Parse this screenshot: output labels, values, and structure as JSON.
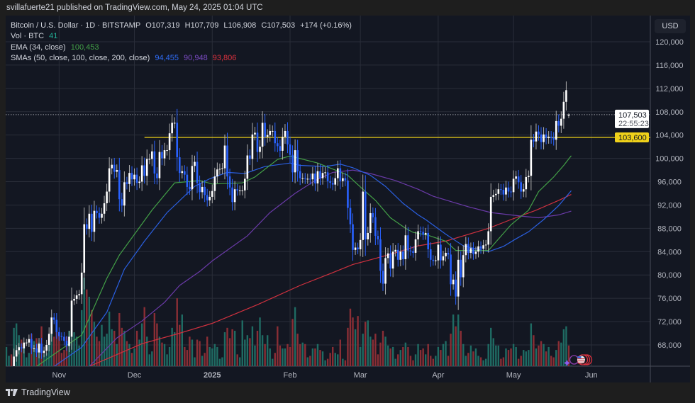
{
  "header": {
    "published": "svillafuerte21 published on TradingView.com, May 24, 2025 01:04 UTC"
  },
  "legend": {
    "symbol": "Bitcoin / U.S. Dollar · 1D · BITSTAMP",
    "open": "O107,319",
    "high": "H107,709",
    "low": "L106,908",
    "close": "C107,503",
    "change": "+174 (+0.16%)",
    "vol_label": "Vol · BTC",
    "vol_value": "41",
    "ema_label": "EMA (34, close)",
    "ema_value": "100,453",
    "sma_label": "SMAs (50, close, 100, close, 200, close)",
    "sma50_value": "94,455",
    "sma100_value": "90,948",
    "sma200_value": "93,806"
  },
  "currency": "USD",
  "footer": {
    "brand": "TradingView"
  },
  "colors": {
    "up": "#ffffff",
    "down": "#2962ff",
    "vol_up": "#1f6b63",
    "vol_down": "#8a2e35",
    "ema": "#43a047",
    "sma50": "#2a5fe0",
    "sma100": "#6a3aa8",
    "sma200": "#d0313f",
    "level": "#f0d11a",
    "background": "#131722",
    "grid": "#2a2e39"
  },
  "chart_data": {
    "type": "candlestick",
    "first_date": "2024-10-11",
    "y_ticks": [
      "120,000",
      "116,000",
      "112,000",
      "108,000",
      "104,000",
      "100,000",
      "96,000",
      "92,000",
      "88,000",
      "84,000",
      "80,000",
      "76,000",
      "72,000",
      "68,000"
    ],
    "ylim": [
      64300,
      124000
    ],
    "x_ticks": [
      {
        "label": "Nov",
        "date": "2024-11-01",
        "bold": false
      },
      {
        "label": "Dec",
        "date": "2024-12-01",
        "bold": false
      },
      {
        "label": "2025",
        "date": "2025-01-01",
        "bold": true
      },
      {
        "label": "Feb",
        "date": "2025-02-01",
        "bold": false
      },
      {
        "label": "Mar",
        "date": "2025-03-01",
        "bold": false
      },
      {
        "label": "Apr",
        "date": "2025-04-01",
        "bold": false
      },
      {
        "label": "May",
        "date": "2025-05-01",
        "bold": false
      },
      {
        "label": "Jun",
        "date": "2025-06-01",
        "bold": false
      }
    ],
    "closes": [
      62500,
      63200,
      62900,
      66000,
      67100,
      67600,
      67400,
      68400,
      68400,
      69000,
      67400,
      67400,
      66700,
      68200,
      66600,
      67000,
      68000,
      69900,
      72700,
      72300,
      70200,
      69500,
      69400,
      68700,
      67800,
      69400,
      75600,
      75900,
      76500,
      76700,
      80400,
      88700,
      87900,
      90500,
      87400,
      91000,
      90600,
      89800,
      90500,
      92300,
      94300,
      98300,
      98900,
      97700,
      98000,
      93000,
      91900,
      95900,
      95600,
      97500,
      96400,
      97200,
      95800,
      96000,
      98800,
      97000,
      99900,
      99900,
      101200,
      97400,
      96600,
      101100,
      100000,
      101400,
      101400,
      104300,
      106100,
      106100,
      100200,
      97500,
      97800,
      97200,
      95100,
      94700,
      98700,
      99400,
      95800,
      94200,
      95100,
      93700,
      92800,
      93400,
      94400,
      96900,
      98100,
      98200,
      98300,
      102200,
      96900,
      95000,
      92500,
      94700,
      94500,
      94500,
      94500,
      96500,
      100500,
      99900,
      104100,
      104400,
      101100,
      102000,
      106100,
      103700,
      104000,
      104700,
      104700,
      102600,
      102100,
      101300,
      103700,
      104700,
      102400,
      100600,
      97600,
      101400,
      97800,
      96600,
      96600,
      96500,
      96500,
      96400,
      97400,
      95700,
      97800,
      96600,
      97500,
      97600,
      96100,
      95800,
      95500,
      96600,
      98300,
      96100,
      96600,
      96200,
      91500,
      88700,
      84300,
      84700,
      84400,
      86000,
      94300,
      86100,
      87200,
      90600,
      89900,
      86700,
      86100,
      80700,
      78500,
      82900,
      83700,
      81100,
      84000,
      84300,
      82600,
      84000,
      82700,
      86800,
      84200,
      84100,
      83800,
      86100,
      87500,
      87400,
      86900,
      87200,
      84400,
      82600,
      82400,
      82500,
      85200,
      82500,
      83200,
      83800,
      83500,
      78400,
      79200,
      76300,
      82600,
      79600,
      83400,
      85300,
      83800,
      84600,
      83600,
      84000,
      84900,
      84500,
      85100,
      85200,
      87500,
      93400,
      93700,
      93900,
      94700,
      94600,
      93800,
      95000,
      94300,
      94200,
      96500,
      96900,
      95900,
      94300,
      94700,
      96800,
      97000,
      103200,
      102900,
      104600,
      104100,
      102800,
      104100,
      103500,
      103700,
      103500,
      103200,
      106400,
      105600,
      106800,
      109700,
      111700,
      107319
    ],
    "last_candle": {
      "open": 107319,
      "high": 107709,
      "low": 106908,
      "close": 107503
    },
    "volumes": [
      1300,
      700,
      800,
      2600,
      2900,
      2100,
      1800,
      1400,
      600,
      900,
      2200,
      1700,
      1900,
      1600,
      2700,
      800,
      900,
      1800,
      3300,
      2000,
      2500,
      2300,
      900,
      1100,
      2000,
      2400,
      4200,
      2300,
      2000,
      1400,
      3800,
      6000,
      5200,
      4700,
      3800,
      3000,
      2000,
      1700,
      2800,
      2000,
      2200,
      3700,
      2500,
      2400,
      1500,
      3600,
      2600,
      2400,
      1700,
      1500,
      900,
      1200,
      2400,
      1800,
      2900,
      4000,
      2000,
      800,
      1000,
      3600,
      2900,
      2000,
      1600,
      1500,
      800,
      1300,
      2600,
      2300,
      4600,
      2800,
      3500,
      1300,
      1100,
      2000,
      1800,
      600,
      1800,
      1700,
      700,
      900,
      2000,
      1300,
      1200,
      1500,
      1300,
      500,
      600,
      2300,
      2600,
      1900,
      2500,
      2400,
      800,
      600,
      3100,
      1800,
      2100,
      1900,
      2700,
      1400,
      2400,
      3300,
      2100,
      1500,
      2100,
      1200,
      500,
      900,
      2700,
      1400,
      1200,
      1200,
      1500,
      1300,
      3200,
      4000,
      2200,
      1500,
      1600,
      1500,
      600,
      700,
      1200,
      1200,
      1500,
      1100,
      1000,
      400,
      500,
      900,
      1300,
      900,
      800,
      1800,
      500,
      400,
      2600,
      3900,
      3300,
      2500,
      3400,
      1300,
      2200,
      3000,
      3100,
      2000,
      1800,
      2200,
      800,
      1600,
      2400,
      2000,
      1400,
      1200,
      1300,
      500,
      800,
      1100,
      1300,
      1600,
      1300,
      700,
      400,
      800,
      1500,
      1100,
      1200,
      800,
      1500,
      700,
      500,
      700,
      1300,
      1100,
      1500,
      1700,
      700,
      2200,
      3500,
      2700,
      3500,
      2400,
      1500,
      700,
      900,
      1400,
      1000,
      1200,
      700,
      600,
      400,
      500,
      1500,
      2600,
      1900,
      1400,
      1400,
      500,
      600,
      1200,
      1100,
      1200,
      1500,
      1300,
      500,
      700,
      1100,
      1000,
      1100,
      2900,
      2100,
      1200,
      1400,
      1700,
      1500,
      1000,
      1300,
      700,
      600,
      1100,
      1700,
      1600,
      2500,
      2700,
      1400,
      41
    ],
    "ema34": [
      [
        "2024-10-23",
        64300
      ],
      [
        "2024-11-10",
        69700
      ],
      [
        "2024-11-20",
        79400
      ],
      [
        "2024-11-25",
        83400
      ],
      [
        "2024-12-08",
        91100
      ],
      [
        "2024-12-17",
        95800
      ],
      [
        "2024-12-27",
        96200
      ],
      [
        "2025-01-01",
        95600
      ],
      [
        "2025-01-13",
        95800
      ],
      [
        "2025-01-18",
        96800
      ],
      [
        "2025-01-27",
        99800
      ],
      [
        "2025-02-01",
        100400
      ],
      [
        "2025-02-12",
        99200
      ],
      [
        "2025-02-19",
        98000
      ],
      [
        "2025-02-24",
        97100
      ],
      [
        "2025-03-02",
        94700
      ],
      [
        "2025-03-07",
        92800
      ],
      [
        "2025-03-13",
        89800
      ],
      [
        "2025-03-19",
        88000
      ],
      [
        "2025-03-22",
        87300
      ],
      [
        "2025-03-28",
        86800
      ],
      [
        "2025-04-04",
        85800
      ],
      [
        "2025-04-08",
        84200
      ],
      [
        "2025-04-21",
        84200
      ],
      [
        "2025-04-30",
        88600
      ],
      [
        "2025-05-07",
        91100
      ],
      [
        "2025-05-11",
        94300
      ],
      [
        "2025-05-17",
        96800
      ],
      [
        "2025-05-21",
        98800
      ],
      [
        "2025-05-24",
        100453
      ]
    ],
    "sma50": [
      [
        "2024-10-30",
        64300
      ],
      [
        "2024-11-10",
        67600
      ],
      [
        "2024-11-20",
        73600
      ],
      [
        "2024-11-27",
        81000
      ],
      [
        "2024-12-05",
        85800
      ],
      [
        "2024-12-14",
        90700
      ],
      [
        "2024-12-25",
        95200
      ],
      [
        "2024-12-31",
        96500
      ],
      [
        "2025-01-07",
        97600
      ],
      [
        "2025-01-14",
        97400
      ],
      [
        "2025-01-22",
        98600
      ],
      [
        "2025-02-01",
        99200
      ],
      [
        "2025-02-05",
        98800
      ],
      [
        "2025-02-15",
        98600
      ],
      [
        "2025-02-21",
        99000
      ],
      [
        "2025-02-26",
        98400
      ],
      [
        "2025-03-05",
        97100
      ],
      [
        "2025-03-11",
        95200
      ],
      [
        "2025-03-18",
        92300
      ],
      [
        "2025-03-24",
        90300
      ],
      [
        "2025-03-27",
        89500
      ],
      [
        "2025-04-04",
        87000
      ],
      [
        "2025-04-11",
        85000
      ],
      [
        "2025-04-21",
        84000
      ],
      [
        "2025-04-27",
        84900
      ],
      [
        "2025-05-02",
        86200
      ],
      [
        "2025-05-07",
        87400
      ],
      [
        "2025-05-13",
        89500
      ],
      [
        "2025-05-19",
        91900
      ],
      [
        "2025-05-24",
        94455
      ]
    ],
    "sma100": [
      [
        "2024-11-13",
        64300
      ],
      [
        "2024-11-24",
        69200
      ],
      [
        "2024-12-04",
        72100
      ],
      [
        "2024-12-13",
        75300
      ],
      [
        "2024-12-19",
        78200
      ],
      [
        "2024-12-27",
        80600
      ],
      [
        "2025-01-01",
        82400
      ],
      [
        "2025-01-15",
        86700
      ],
      [
        "2025-01-24",
        90700
      ],
      [
        "2025-02-03",
        94000
      ],
      [
        "2025-02-11",
        96200
      ],
      [
        "2025-02-18",
        97600
      ],
      [
        "2025-02-26",
        98000
      ],
      [
        "2025-03-05",
        97400
      ],
      [
        "2025-03-15",
        96200
      ],
      [
        "2025-03-24",
        94700
      ],
      [
        "2025-03-30",
        93500
      ],
      [
        "2025-04-13",
        91700
      ],
      [
        "2025-04-22",
        90700
      ],
      [
        "2025-05-04",
        90100
      ],
      [
        "2025-05-11",
        89800
      ],
      [
        "2025-05-19",
        90300
      ],
      [
        "2025-05-24",
        90948
      ]
    ],
    "sma200": [
      [
        "2024-11-13",
        64300
      ],
      [
        "2024-12-04",
        68200
      ],
      [
        "2024-12-19",
        70000
      ],
      [
        "2025-01-01",
        71700
      ],
      [
        "2025-01-19",
        74900
      ],
      [
        "2025-02-05",
        78200
      ],
      [
        "2025-02-18",
        80400
      ],
      [
        "2025-02-26",
        81800
      ],
      [
        "2025-03-05",
        82600
      ],
      [
        "2025-03-15",
        83800
      ],
      [
        "2025-03-24",
        85000
      ],
      [
        "2025-04-04",
        85800
      ],
      [
        "2025-04-21",
        88000
      ],
      [
        "2025-04-30",
        89500
      ],
      [
        "2025-05-10",
        91100
      ],
      [
        "2025-05-19",
        92800
      ],
      [
        "2025-05-24",
        93806
      ]
    ],
    "horizontal_level": {
      "value": 103600,
      "label": "103,600",
      "from": "2024-12-05"
    },
    "last_price": {
      "value": 107503,
      "label": "107,503",
      "countdown": "22:55:23"
    }
  }
}
